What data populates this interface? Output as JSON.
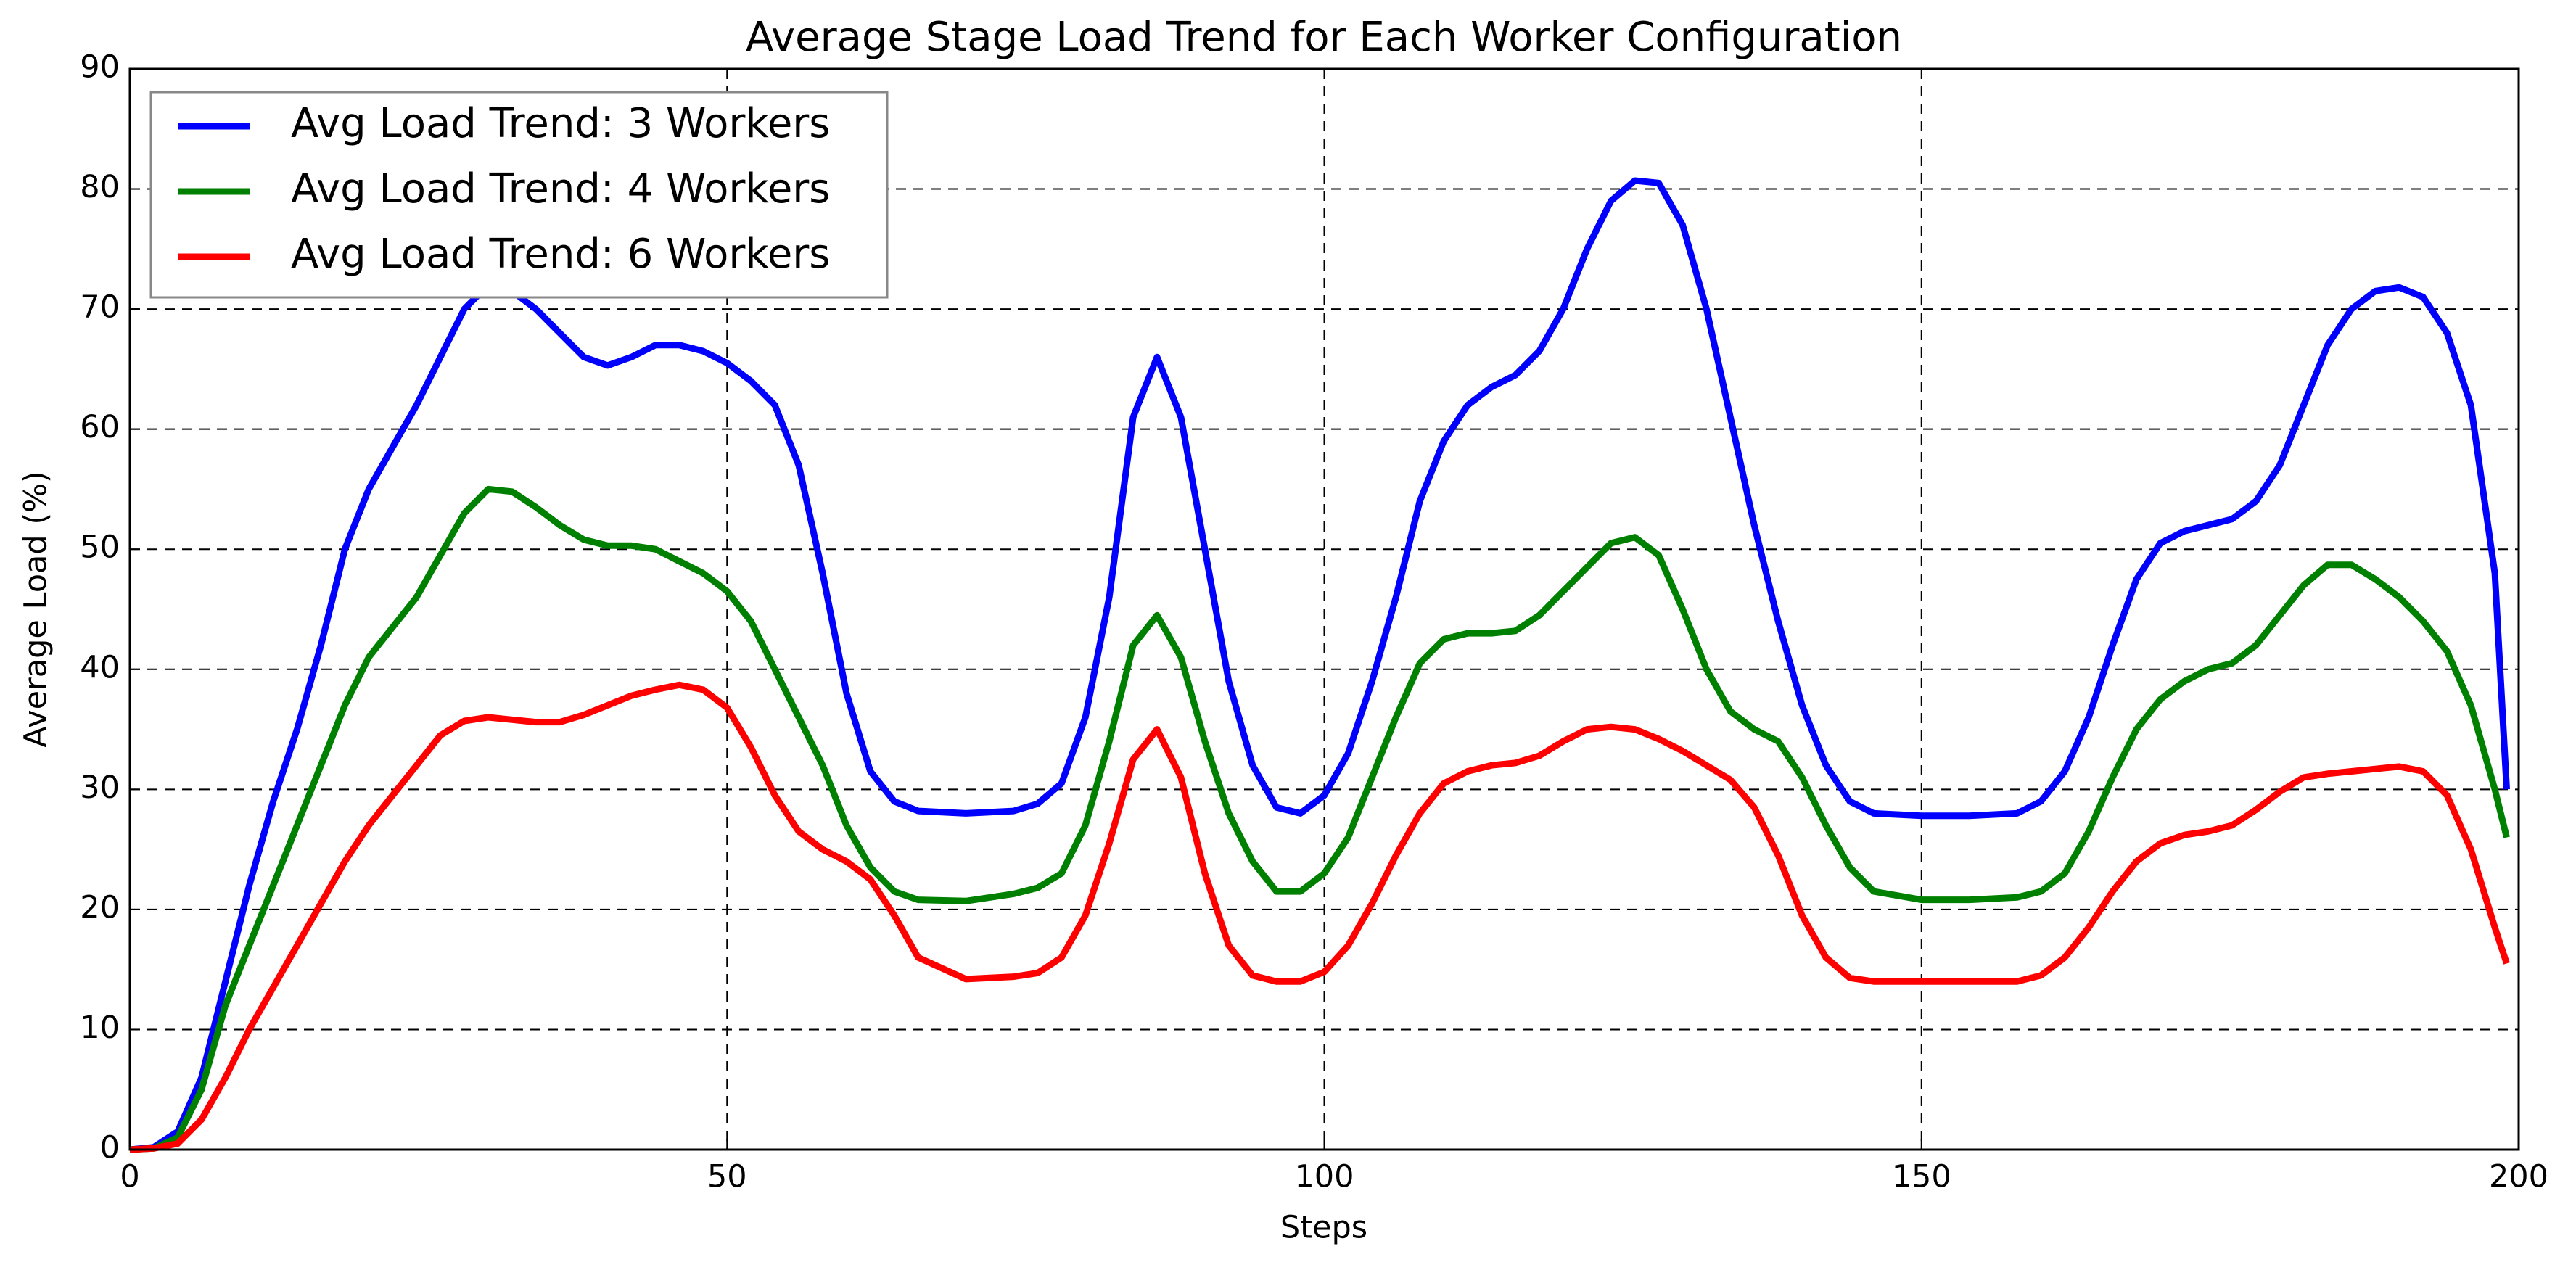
{
  "chart_data": {
    "type": "line",
    "title": "Average Stage Load Trend for Each Worker Configuration",
    "xlabel": "Steps",
    "ylabel": "Average Load (%)",
    "x": [
      0,
      2,
      4,
      6,
      8,
      10,
      12,
      14,
      16,
      18,
      20,
      22,
      24,
      26,
      28,
      30,
      32,
      34,
      36,
      38,
      40,
      42,
      44,
      46,
      48,
      50,
      52,
      54,
      56,
      58,
      60,
      62,
      64,
      66,
      70,
      74,
      76,
      78,
      80,
      82,
      84,
      86,
      88,
      90,
      92,
      94,
      96,
      98,
      100,
      102,
      104,
      106,
      108,
      110,
      112,
      114,
      116,
      118,
      120,
      122,
      124,
      126,
      128,
      130,
      132,
      134,
      136,
      138,
      140,
      142,
      144,
      146,
      150,
      154,
      158,
      160,
      162,
      164,
      166,
      168,
      170,
      172,
      174,
      176,
      178,
      180,
      182,
      184,
      186,
      188,
      190,
      192,
      194,
      196,
      198,
      199
    ],
    "series": [
      {
        "name": "Avg Load Trend: 3 Workers",
        "color": "#0000ff",
        "values": [
          0,
          0.2,
          1.5,
          6,
          14,
          22,
          29,
          35,
          42,
          50,
          55,
          58.5,
          62,
          66,
          70,
          72,
          71.5,
          70,
          68,
          66,
          65.3,
          66,
          67,
          67,
          66.5,
          65.5,
          64,
          62,
          57,
          48,
          38,
          31.5,
          29,
          28.2,
          28,
          28.2,
          28.8,
          30.5,
          36,
          46,
          61,
          66,
          61,
          50,
          39,
          32,
          28.5,
          28,
          29.5,
          33,
          39,
          46,
          54,
          59,
          62,
          63.5,
          64.5,
          66.5,
          70,
          75,
          79,
          80.7,
          80.5,
          77,
          70,
          61,
          52,
          44,
          37,
          32,
          29,
          28,
          27.8,
          27.8,
          28,
          29,
          31.5,
          36,
          42,
          47.5,
          50.5,
          51.5,
          52,
          52.5,
          54,
          57,
          62,
          67,
          70,
          71.5,
          71.8,
          71,
          68,
          62,
          48,
          30
        ]
      },
      {
        "name": "Avg Load Trend: 4 Workers",
        "color": "#008000",
        "values": [
          0,
          0.1,
          1,
          5,
          12,
          17,
          22,
          27,
          32,
          37,
          41,
          43.5,
          46,
          49.5,
          53,
          55,
          54.8,
          53.5,
          52,
          50.8,
          50.3,
          50.3,
          50,
          49,
          48,
          46.5,
          44,
          40,
          36,
          32,
          27,
          23.5,
          21.5,
          20.8,
          20.7,
          21.3,
          21.8,
          23,
          27,
          34,
          42,
          44.5,
          41,
          34,
          28,
          24,
          21.5,
          21.5,
          23,
          26,
          31,
          36,
          40.5,
          42.5,
          43,
          43,
          43.2,
          44.5,
          46.5,
          48.5,
          50.5,
          51,
          49.5,
          45,
          40,
          36.5,
          35,
          34,
          31,
          27,
          23.5,
          21.5,
          20.8,
          20.8,
          21,
          21.5,
          23,
          26.5,
          31,
          35,
          37.5,
          39,
          40,
          40.5,
          42,
          44.5,
          47,
          48.7,
          48.7,
          47.5,
          46,
          44,
          41.5,
          37,
          30,
          26
        ]
      },
      {
        "name": "Avg Load Trend: 6 Workers",
        "color": "#ff0000",
        "values": [
          0,
          0.1,
          0.5,
          2.5,
          6,
          10,
          13.5,
          17,
          20.5,
          24,
          27,
          29.5,
          32,
          34.5,
          35.7,
          36,
          35.8,
          35.6,
          35.6,
          36.2,
          37,
          37.8,
          38.3,
          38.7,
          38.3,
          36.8,
          33.5,
          29.5,
          26.5,
          25,
          24,
          22.5,
          19.5,
          16,
          14.2,
          14.4,
          14.7,
          16,
          19.5,
          25.5,
          32.5,
          35,
          31,
          23,
          17,
          14.5,
          14,
          14,
          14.8,
          17,
          20.5,
          24.5,
          28,
          30.5,
          31.5,
          32,
          32.2,
          32.8,
          34,
          35,
          35.2,
          35,
          34.2,
          33.2,
          32,
          30.8,
          28.5,
          24.5,
          19.5,
          16,
          14.3,
          14,
          14,
          14,
          14,
          14.5,
          16,
          18.5,
          21.5,
          24,
          25.5,
          26.2,
          26.5,
          27,
          28.3,
          29.8,
          31,
          31.3,
          31.5,
          31.7,
          31.9,
          31.5,
          29.5,
          25,
          18.5,
          15.5
        ]
      }
    ],
    "xlim": [
      0,
      200
    ],
    "xticks": [
      0,
      50,
      100,
      150,
      200
    ],
    "ylim": [
      0,
      90
    ],
    "yticks": [
      0,
      10,
      20,
      30,
      40,
      50,
      60,
      70,
      80,
      90
    ],
    "grid": true,
    "legend": "upper left"
  }
}
